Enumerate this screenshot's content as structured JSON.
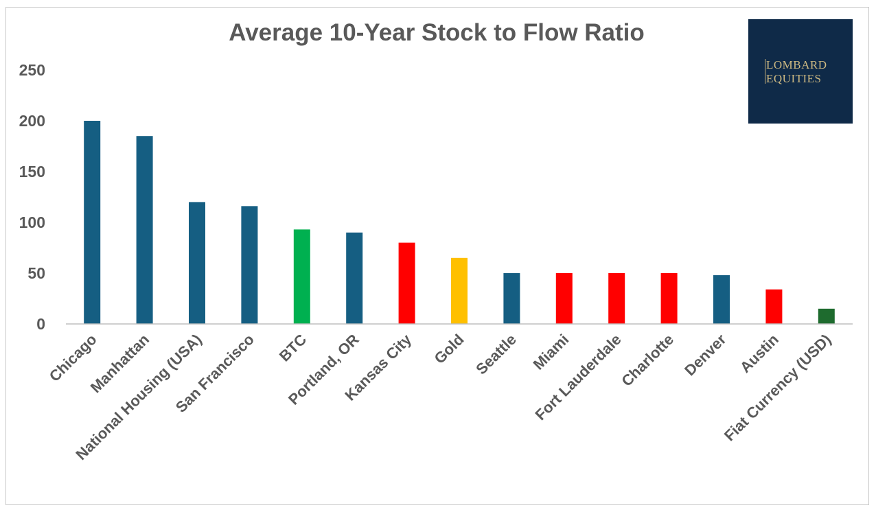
{
  "chart_data": {
    "type": "bar",
    "title": "Average 10-Year Stock to Flow Ratio",
    "xlabel": "",
    "ylabel": "",
    "ylim": [
      0,
      250
    ],
    "yticks": [
      "0",
      "50",
      "100",
      "150",
      "200",
      "250"
    ],
    "categories": [
      "Chicago",
      "Manhattan",
      "National Housing (USA)",
      "San Francisco",
      "BTC",
      "Portland, OR",
      "Kansas City",
      "Gold",
      "Seattle",
      "Miami",
      "Fort Lauderdale",
      "Charlotte",
      "Denver",
      "Austin",
      "Fiat Currency (USD)"
    ],
    "values": [
      200,
      185,
      120,
      116,
      93,
      90,
      80,
      65,
      50,
      50,
      50,
      50,
      48,
      34,
      15
    ],
    "bar_colors": [
      "#155e82",
      "#155e82",
      "#155e82",
      "#155e82",
      "#00b050",
      "#155e82",
      "#ff0000",
      "#ffc000",
      "#155e82",
      "#ff0000",
      "#ff0000",
      "#ff0000",
      "#155e82",
      "#ff0000",
      "#1e6b2e"
    ],
    "grid": false,
    "legend": "none"
  },
  "logo": {
    "line1": "LOMBARD",
    "line2": "EQUITIES",
    "background": "#0f2a48",
    "text_color": "#cdb982"
  }
}
